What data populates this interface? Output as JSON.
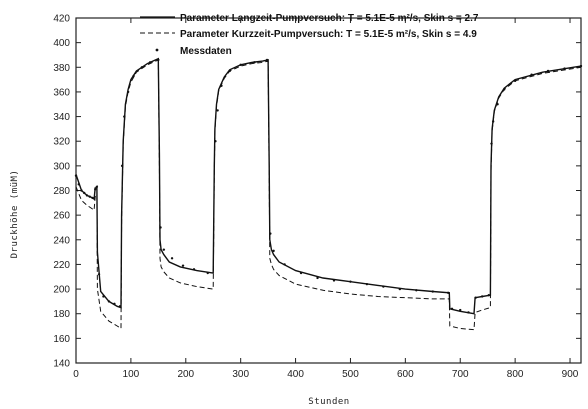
{
  "chart_data": {
    "type": "line",
    "title": "",
    "xlabel": "Stunden",
    "ylabel": "Druckhöhe (müM)",
    "xlim": [
      0,
      920
    ],
    "ylim": [
      140,
      420
    ],
    "xticks": [
      0,
      100,
      200,
      300,
      400,
      500,
      600,
      700,
      800,
      900
    ],
    "yticks": [
      140,
      160,
      180,
      200,
      220,
      240,
      260,
      280,
      300,
      320,
      340,
      360,
      380,
      400,
      420
    ],
    "grid": false,
    "legend_position": "top-right",
    "series": [
      {
        "name": "Parameter Langzeit-Pumpversuch: T = 5.1E-5 m²/s, Skin s = 2.7",
        "style": "solid",
        "x": [
          0,
          10,
          20,
          30,
          33,
          35,
          36,
          38,
          39,
          45,
          60,
          75,
          82,
          83,
          86,
          90,
          95,
          100,
          110,
          120,
          130,
          140,
          150,
          152,
          153,
          155,
          160,
          170,
          190,
          220,
          250,
          252,
          253,
          256,
          260,
          270,
          280,
          300,
          320,
          340,
          350,
          352,
          353,
          356,
          360,
          370,
          400,
          450,
          500,
          550,
          600,
          650,
          680,
          681,
          700,
          725,
          727,
          740,
          755,
          756,
          758,
          762,
          770,
          780,
          800,
          850,
          920
        ],
        "y": [
          293,
          280,
          276,
          274,
          273,
          282,
          282,
          283,
          230,
          198,
          190,
          186,
          185,
          260,
          320,
          350,
          362,
          370,
          377,
          380,
          383,
          385,
          387,
          310,
          240,
          232,
          228,
          222,
          218,
          215,
          213,
          300,
          330,
          350,
          362,
          372,
          378,
          382,
          384,
          385,
          386,
          300,
          240,
          232,
          228,
          222,
          215,
          209,
          206,
          203,
          200,
          198,
          197,
          184,
          182,
          180,
          193,
          194,
          195,
          300,
          330,
          345,
          356,
          363,
          370,
          376,
          381
        ]
      },
      {
        "name": "Parameter Kurzzeit-Pumpversuch: T = 5.1E-5 m²/s, Skin s = 4.9",
        "style": "dashed",
        "x": [
          0,
          10,
          20,
          30,
          33,
          35,
          36,
          38,
          39,
          45,
          60,
          75,
          82,
          83,
          86,
          90,
          95,
          100,
          110,
          120,
          130,
          140,
          150,
          152,
          153,
          155,
          160,
          170,
          190,
          220,
          250,
          252,
          253,
          256,
          260,
          270,
          280,
          300,
          320,
          340,
          350,
          352,
          353,
          356,
          360,
          370,
          400,
          450,
          500,
          550,
          600,
          650,
          680,
          681,
          700,
          725,
          727,
          740,
          755,
          756,
          758,
          762,
          770,
          780,
          800,
          850,
          920
        ],
        "y": [
          283,
          272,
          268,
          265,
          264,
          275,
          276,
          277,
          200,
          182,
          174,
          170,
          168,
          255,
          318,
          348,
          360,
          368,
          376,
          379,
          382,
          384,
          386,
          300,
          225,
          218,
          214,
          209,
          205,
          202,
          200,
          295,
          328,
          348,
          361,
          371,
          377,
          381,
          383,
          384,
          385,
          290,
          225,
          220,
          216,
          211,
          204,
          199,
          196,
          194,
          193,
          192,
          192,
          170,
          168,
          167,
          181,
          183,
          185,
          295,
          328,
          344,
          355,
          362,
          369,
          375,
          380
        ]
      },
      {
        "name": "Messdaten",
        "style": "dots",
        "x": [
          0,
          5,
          10,
          15,
          20,
          25,
          30,
          35,
          38,
          42,
          50,
          60,
          70,
          80,
          84,
          88,
          95,
          105,
          120,
          135,
          150,
          154,
          160,
          175,
          195,
          215,
          240,
          254,
          258,
          265,
          280,
          300,
          325,
          348,
          354,
          360,
          380,
          410,
          440,
          470,
          500,
          530,
          560,
          590,
          620,
          650,
          678,
          685,
          700,
          715,
          728,
          740,
          752,
          757,
          760,
          768,
          780,
          800,
          830,
          860,
          890,
          920
        ],
        "y": [
          292,
          285,
          280,
          278,
          276,
          275,
          274,
          281,
          283,
          212,
          194,
          190,
          188,
          186,
          300,
          340,
          360,
          373,
          380,
          384,
          386,
          250,
          232,
          225,
          219,
          216,
          213,
          320,
          345,
          365,
          377,
          382,
          384,
          386,
          245,
          231,
          220,
          213,
          209,
          207,
          206,
          204,
          202,
          200,
          199,
          198,
          197,
          184,
          183,
          181,
          193,
          194,
          195,
          318,
          336,
          350,
          362,
          369,
          374,
          377,
          379,
          381
        ]
      }
    ]
  }
}
